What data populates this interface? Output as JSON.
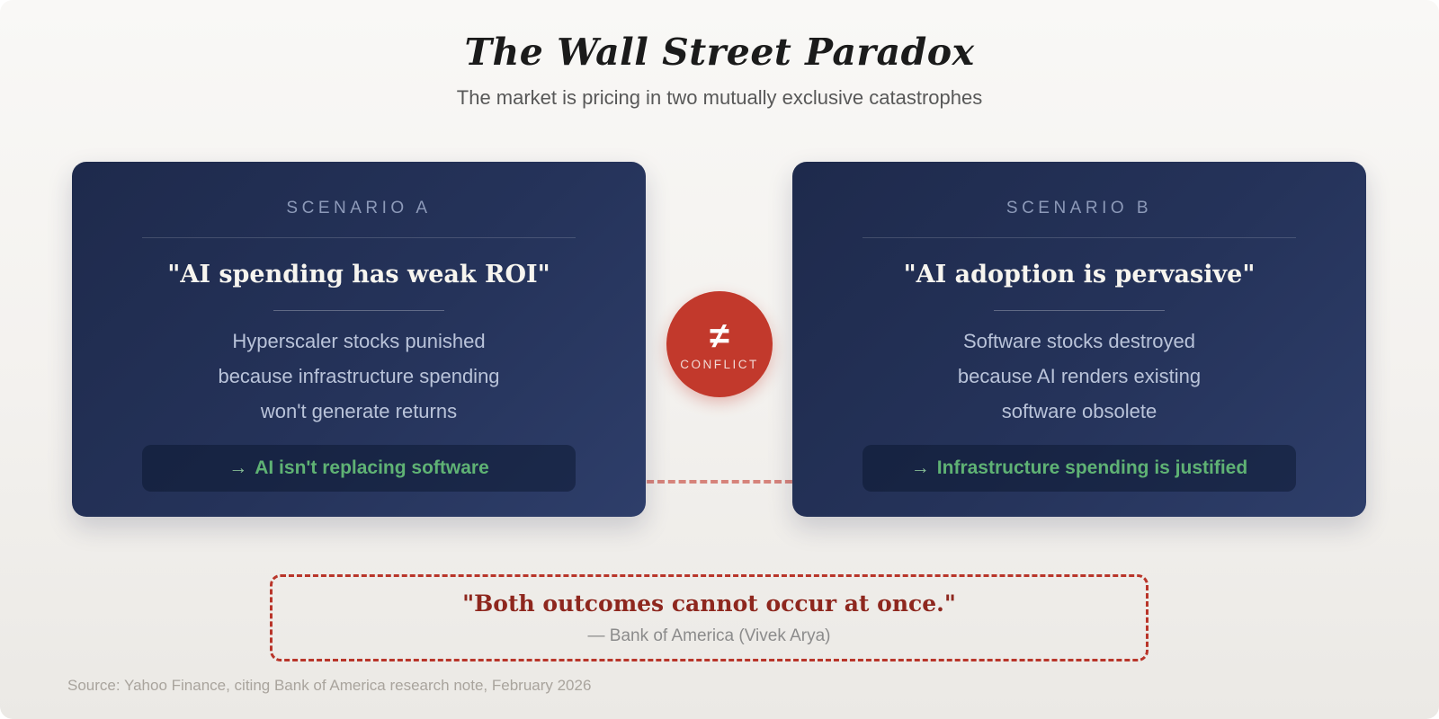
{
  "header": {
    "title": "The Wall Street Paradox",
    "subtitle": "The market is pricing in two mutually exclusive catastrophes"
  },
  "scenarios": [
    {
      "label": "SCENARIO A",
      "headline": "\"AI spending has weak ROI\"",
      "body_lines": [
        "Hyperscaler stocks punished",
        "because infrastructure spending",
        "won't generate returns"
      ],
      "takeaway_arrow": "→",
      "takeaway_text": "AI isn't replacing software"
    },
    {
      "label": "SCENARIO B",
      "headline": "\"AI adoption is pervasive\"",
      "body_lines": [
        "Software stocks destroyed",
        "because AI renders existing",
        "software obsolete"
      ],
      "takeaway_arrow": "→",
      "takeaway_text": "Infrastructure spending is justified"
    }
  ],
  "conflict": {
    "symbol": "≠",
    "label": "CONFLICT"
  },
  "quote": {
    "text": "\"Both outcomes cannot occur at once.\"",
    "attribution": "— Bank of America (Vivek Arya)"
  },
  "footer": {
    "source": "Source: Yahoo Finance, citing Bank of America research note, February 2026"
  },
  "colors": {
    "accent_red": "#c2392c",
    "quote_text_red": "#8e271e",
    "takeaway_green": "#5fb274",
    "card_navy_dark": "#1e2a4c",
    "card_navy_light": "#2e3e6a",
    "scenario_label_slate": "#8d9ab9",
    "card_body_slate": "#b9c3d9"
  }
}
